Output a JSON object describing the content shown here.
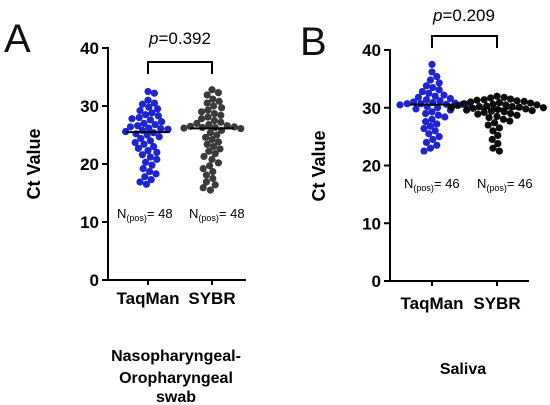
{
  "chart_data": [
    {
      "type": "scatter",
      "panel_label": "A",
      "ylabel": "Ct Value",
      "ylim": [
        0,
        40
      ],
      "yticks": [
        0,
        10,
        20,
        30,
        40
      ],
      "grid": false,
      "median_line": true,
      "categories": [
        "TaqMan",
        "SYBR"
      ],
      "series": [
        {
          "name": "TaqMan",
          "color": "#1d24d0",
          "values": [
            32.5,
            32.2,
            31.0,
            30.5,
            30.3,
            29.8,
            29.5,
            29.2,
            28.8,
            28.5,
            28.3,
            28.0,
            27.8,
            27.6,
            27.3,
            27.0,
            26.8,
            26.6,
            26.4,
            26.2,
            26.1,
            26.0,
            25.8,
            25.6,
            25.4,
            25.2,
            25.0,
            24.7,
            24.4,
            24.0,
            23.7,
            23.4,
            23.0,
            22.7,
            22.3,
            22.0,
            21.6,
            21.2,
            20.8,
            20.3,
            19.8,
            19.2,
            18.7,
            18.3,
            17.8,
            17.3,
            16.9,
            16.5
          ]
        },
        {
          "name": "SYBR",
          "color": "#3b3b3b",
          "values": [
            32.8,
            32.3,
            31.9,
            31.2,
            30.8,
            30.5,
            30.0,
            29.7,
            29.3,
            29.0,
            28.7,
            28.4,
            28.1,
            27.8,
            27.5,
            27.2,
            27.0,
            26.8,
            26.6,
            26.5,
            26.4,
            26.3,
            26.3,
            26.2,
            26.1,
            25.8,
            25.4,
            25.0,
            24.6,
            24.2,
            23.8,
            23.4,
            23.0,
            22.6,
            22.2,
            21.8,
            21.3,
            20.8,
            20.2,
            19.7,
            19.2,
            18.7,
            18.1,
            17.5,
            16.9,
            16.4,
            15.9,
            15.5
          ]
        }
      ],
      "comparison": {
        "p_symbol": "p",
        "p_text": "=0.392"
      },
      "n_labels": [
        {
          "main": "N",
          "sub": "(pos)",
          "value": "= 48"
        },
        {
          "main": "N",
          "sub": "(pos)",
          "value": "= 48"
        }
      ],
      "caption": [
        "Nasopharyngeal-",
        "Oropharyngeal",
        "swab"
      ]
    },
    {
      "type": "scatter",
      "panel_label": "B",
      "ylabel": "Ct Value",
      "ylim": [
        0,
        40
      ],
      "yticks": [
        0,
        10,
        20,
        30,
        40
      ],
      "grid": false,
      "median_line": true,
      "categories": [
        "TaqMan",
        "SYBR"
      ],
      "series": [
        {
          "name": "TaqMan",
          "color": "#1d24d0",
          "values": [
            37.5,
            36.2,
            35.4,
            34.8,
            34.3,
            33.8,
            33.5,
            33.1,
            32.8,
            32.5,
            32.2,
            32.0,
            31.8,
            31.6,
            31.4,
            31.2,
            31.0,
            30.9,
            30.8,
            30.7,
            30.7,
            30.6,
            30.6,
            30.5,
            30.4,
            30.2,
            30.0,
            29.8,
            29.6,
            29.3,
            29.0,
            28.7,
            28.4,
            28.0,
            27.6,
            27.2,
            26.8,
            26.4,
            26.0,
            25.5,
            25.0,
            24.5,
            24.0,
            23.5,
            23.0,
            22.5
          ]
        },
        {
          "name": "SYBR",
          "color": "#0d0d0d",
          "values": [
            32.0,
            31.8,
            31.7,
            31.5,
            31.4,
            31.3,
            31.2,
            31.1,
            31.0,
            30.9,
            30.8,
            30.7,
            30.6,
            30.5,
            30.5,
            30.4,
            30.3,
            30.2,
            30.2,
            30.1,
            30.0,
            30.0,
            29.9,
            29.8,
            29.7,
            29.6,
            29.5,
            29.4,
            29.3,
            29.2,
            29.0,
            28.9,
            28.7,
            28.5,
            28.3,
            28.0,
            27.7,
            27.4,
            27.0,
            26.5,
            26.0,
            25.2,
            24.5,
            23.8,
            23.0,
            22.5
          ]
        }
      ],
      "comparison": {
        "p_symbol": "p",
        "p_text": "=0.209"
      },
      "n_labels": [
        {
          "main": "N",
          "sub": "(pos)",
          "value": "= 46"
        },
        {
          "main": "N",
          "sub": "(pos)",
          "value": "= 46"
        }
      ],
      "caption": [
        "Saliva"
      ]
    }
  ]
}
